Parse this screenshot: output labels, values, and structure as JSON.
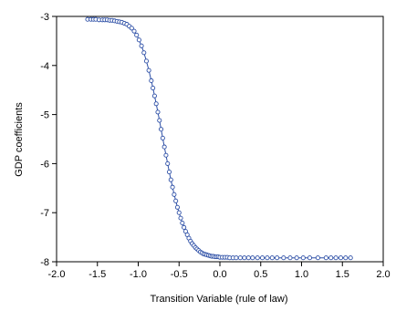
{
  "chart_data": {
    "type": "line",
    "title": "",
    "xlabel": "Transition Variable (rule of law)",
    "ylabel": "GDP coefficients",
    "xlim": [
      -2.0,
      2.0
    ],
    "ylim": [
      -8,
      -3
    ],
    "xticks": [
      -2.0,
      -1.5,
      -1.0,
      -0.5,
      0.0,
      0.5,
      1.0,
      1.5,
      2.0
    ],
    "xtick_labels": [
      "-2.0",
      "-1.5",
      "-1.0",
      "-0.5",
      "0.0",
      "0.5",
      "1.0",
      "1.5",
      "2.0"
    ],
    "yticks": [
      -3,
      -4,
      -5,
      -6,
      -7,
      -8
    ],
    "ytick_labels": [
      "-3",
      "-4",
      "-5",
      "-6",
      "-7",
      "-8"
    ],
    "grid": false,
    "legend": "none",
    "line_color": "#2d4fa6",
    "marker": "open-circle",
    "series": [
      {
        "x": [
          -1.62,
          -1.58,
          -1.55,
          -1.52,
          -1.48,
          -1.44,
          -1.41,
          -1.38,
          -1.35,
          -1.32,
          -1.29,
          -1.26,
          -1.23,
          -1.2,
          -1.17,
          -1.14,
          -1.11,
          -1.08,
          -1.05,
          -1.02,
          -0.99,
          -0.96,
          -0.93,
          -0.9,
          -0.87,
          -0.84,
          -0.82,
          -0.8,
          -0.78,
          -0.76,
          -0.74,
          -0.72,
          -0.7,
          -0.68,
          -0.66,
          -0.64,
          -0.62,
          -0.6,
          -0.58,
          -0.56,
          -0.54,
          -0.52,
          -0.5,
          -0.48,
          -0.46,
          -0.44,
          -0.42,
          -0.4,
          -0.38,
          -0.36,
          -0.34,
          -0.32,
          -0.3,
          -0.28,
          -0.26,
          -0.24,
          -0.22,
          -0.2,
          -0.18,
          -0.16,
          -0.14,
          -0.12,
          -0.1,
          -0.08,
          -0.06,
          -0.04,
          -0.02,
          0.0,
          0.03,
          0.06,
          0.09,
          0.12,
          0.16,
          0.2,
          0.25,
          0.3,
          0.35,
          0.4,
          0.46,
          0.52,
          0.58,
          0.64,
          0.7,
          0.78,
          0.86,
          0.94,
          1.02,
          1.1,
          1.2,
          1.3,
          1.36,
          1.42,
          1.48,
          1.54,
          1.6
        ],
        "y": [
          -3.06,
          -3.06,
          -3.06,
          -3.06,
          -3.07,
          -3.07,
          -3.07,
          -3.07,
          -3.08,
          -3.08,
          -3.09,
          -3.1,
          -3.11,
          -3.12,
          -3.14,
          -3.16,
          -3.2,
          -3.24,
          -3.3,
          -3.38,
          -3.48,
          -3.6,
          -3.74,
          -3.91,
          -4.1,
          -4.31,
          -4.46,
          -4.62,
          -4.78,
          -4.95,
          -5.12,
          -5.3,
          -5.48,
          -5.66,
          -5.83,
          -6.0,
          -6.17,
          -6.33,
          -6.48,
          -6.63,
          -6.76,
          -6.89,
          -7.0,
          -7.11,
          -7.21,
          -7.3,
          -7.38,
          -7.45,
          -7.52,
          -7.58,
          -7.63,
          -7.67,
          -7.71,
          -7.74,
          -7.77,
          -7.8,
          -7.82,
          -7.84,
          -7.85,
          -7.86,
          -7.87,
          -7.88,
          -7.89,
          -7.89,
          -7.9,
          -7.9,
          -7.9,
          -7.91,
          -7.91,
          -7.91,
          -7.91,
          -7.92,
          -7.92,
          -7.92,
          -7.92,
          -7.92,
          -7.92,
          -7.92,
          -7.92,
          -7.92,
          -7.92,
          -7.92,
          -7.92,
          -7.92,
          -7.92,
          -7.92,
          -7.92,
          -7.92,
          -7.92,
          -7.92,
          -7.92,
          -7.92,
          -7.92,
          -7.92,
          -7.92
        ]
      }
    ]
  }
}
